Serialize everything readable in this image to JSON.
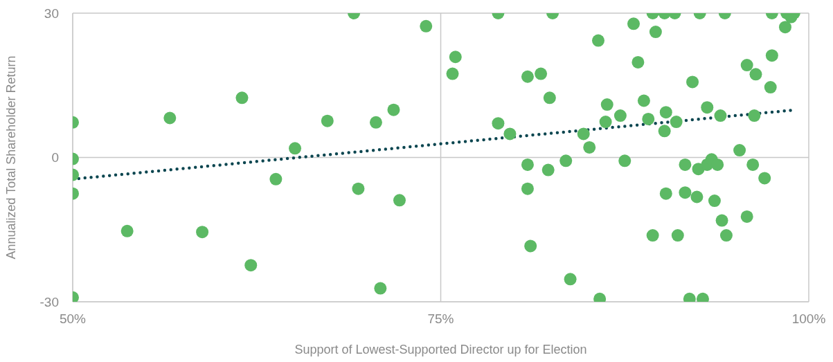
{
  "chart_data": {
    "type": "scatter",
    "xlabel": "Support of Lowest-Supported Director up for Election",
    "ylabel": "Annualized Total Shareholder Return",
    "xlim": [
      50,
      100
    ],
    "ylim": [
      -30,
      30
    ],
    "xticks": [
      {
        "value": 50,
        "label": "50%"
      },
      {
        "value": 75,
        "label": "75%"
      },
      {
        "value": 100,
        "label": "100%"
      }
    ],
    "yticks": [
      -30,
      0,
      30
    ],
    "grid": true,
    "marker": "circle",
    "x": [
      50,
      50,
      50,
      50,
      50,
      53.7,
      56.6,
      58.8,
      61.5,
      62.1,
      63.8,
      65.1,
      67.3,
      69.1,
      69.4,
      70.6,
      70.9,
      71.8,
      72.2,
      74.0,
      75.8,
      76.0,
      78.9,
      78.9,
      79.7,
      80.9,
      80.9,
      80.9,
      81.1,
      81.8,
      82.3,
      82.4,
      82.6,
      83.5,
      83.8,
      84.7,
      85.1,
      85.7,
      85.8,
      86.2,
      86.3,
      87.2,
      87.5,
      88.1,
      88.4,
      88.8,
      89.1,
      89.4,
      89.4,
      89.6,
      90.2,
      90.3,
      90.2,
      90.3,
      90.9,
      91.0,
      91.1,
      91.6,
      91.6,
      92.1,
      91.9,
      92.5,
      92.4,
      92.6,
      92.8,
      93.1,
      93.4,
      93.1,
      93.8,
      93.6,
      94.0,
      94.3,
      94.1,
      94.4,
      95.3,
      95.8,
      95.8,
      96.2,
      96.3,
      96.4,
      97.0,
      97.4,
      97.5,
      97.5,
      98.4,
      98.5,
      98.8,
      99.0
    ],
    "series": [
      {
        "color": "#5cb964",
        "values": [
          7.3,
          -0.3,
          -3.6,
          -7.5,
          -29.1,
          -15.3,
          8.2,
          -15.5,
          12.4,
          -22.4,
          -4.5,
          1.9,
          7.6,
          30,
          -6.5,
          7.3,
          -27.2,
          9.9,
          -8.9,
          27.3,
          17.4,
          20.9,
          30,
          7.1,
          4.9,
          16.8,
          -1.5,
          -6.5,
          -18.4,
          17.4,
          -2.6,
          12.4,
          30,
          -0.7,
          -25.3,
          4.9,
          2.1,
          24.3,
          -29.4,
          7.4,
          11.0,
          8.7,
          -0.7,
          27.8,
          19.8,
          11.8,
          8.0,
          30,
          -16.2,
          26.1,
          30,
          9.4,
          5.5,
          -7.5,
          30,
          7.4,
          -16.2,
          -1.5,
          -7.3,
          15.7,
          -29.4,
          -2.4,
          -8.2,
          30,
          -29.4,
          -1.5,
          -0.4,
          10.4,
          -1.5,
          -9.0,
          8.7,
          30,
          -13.1,
          -16.2,
          1.5,
          19.2,
          -12.3,
          -1.5,
          8.7,
          17.3,
          -4.3,
          14.6,
          21.2,
          30,
          27.1,
          30,
          29.2,
          30
        ]
      },
      {
        "type": "line",
        "color": "#0b4650",
        "line_style": "dotted",
        "marker": "none",
        "x": [
          50,
          98.8
        ],
        "values": [
          -4.5,
          9.8
        ]
      }
    ]
  }
}
